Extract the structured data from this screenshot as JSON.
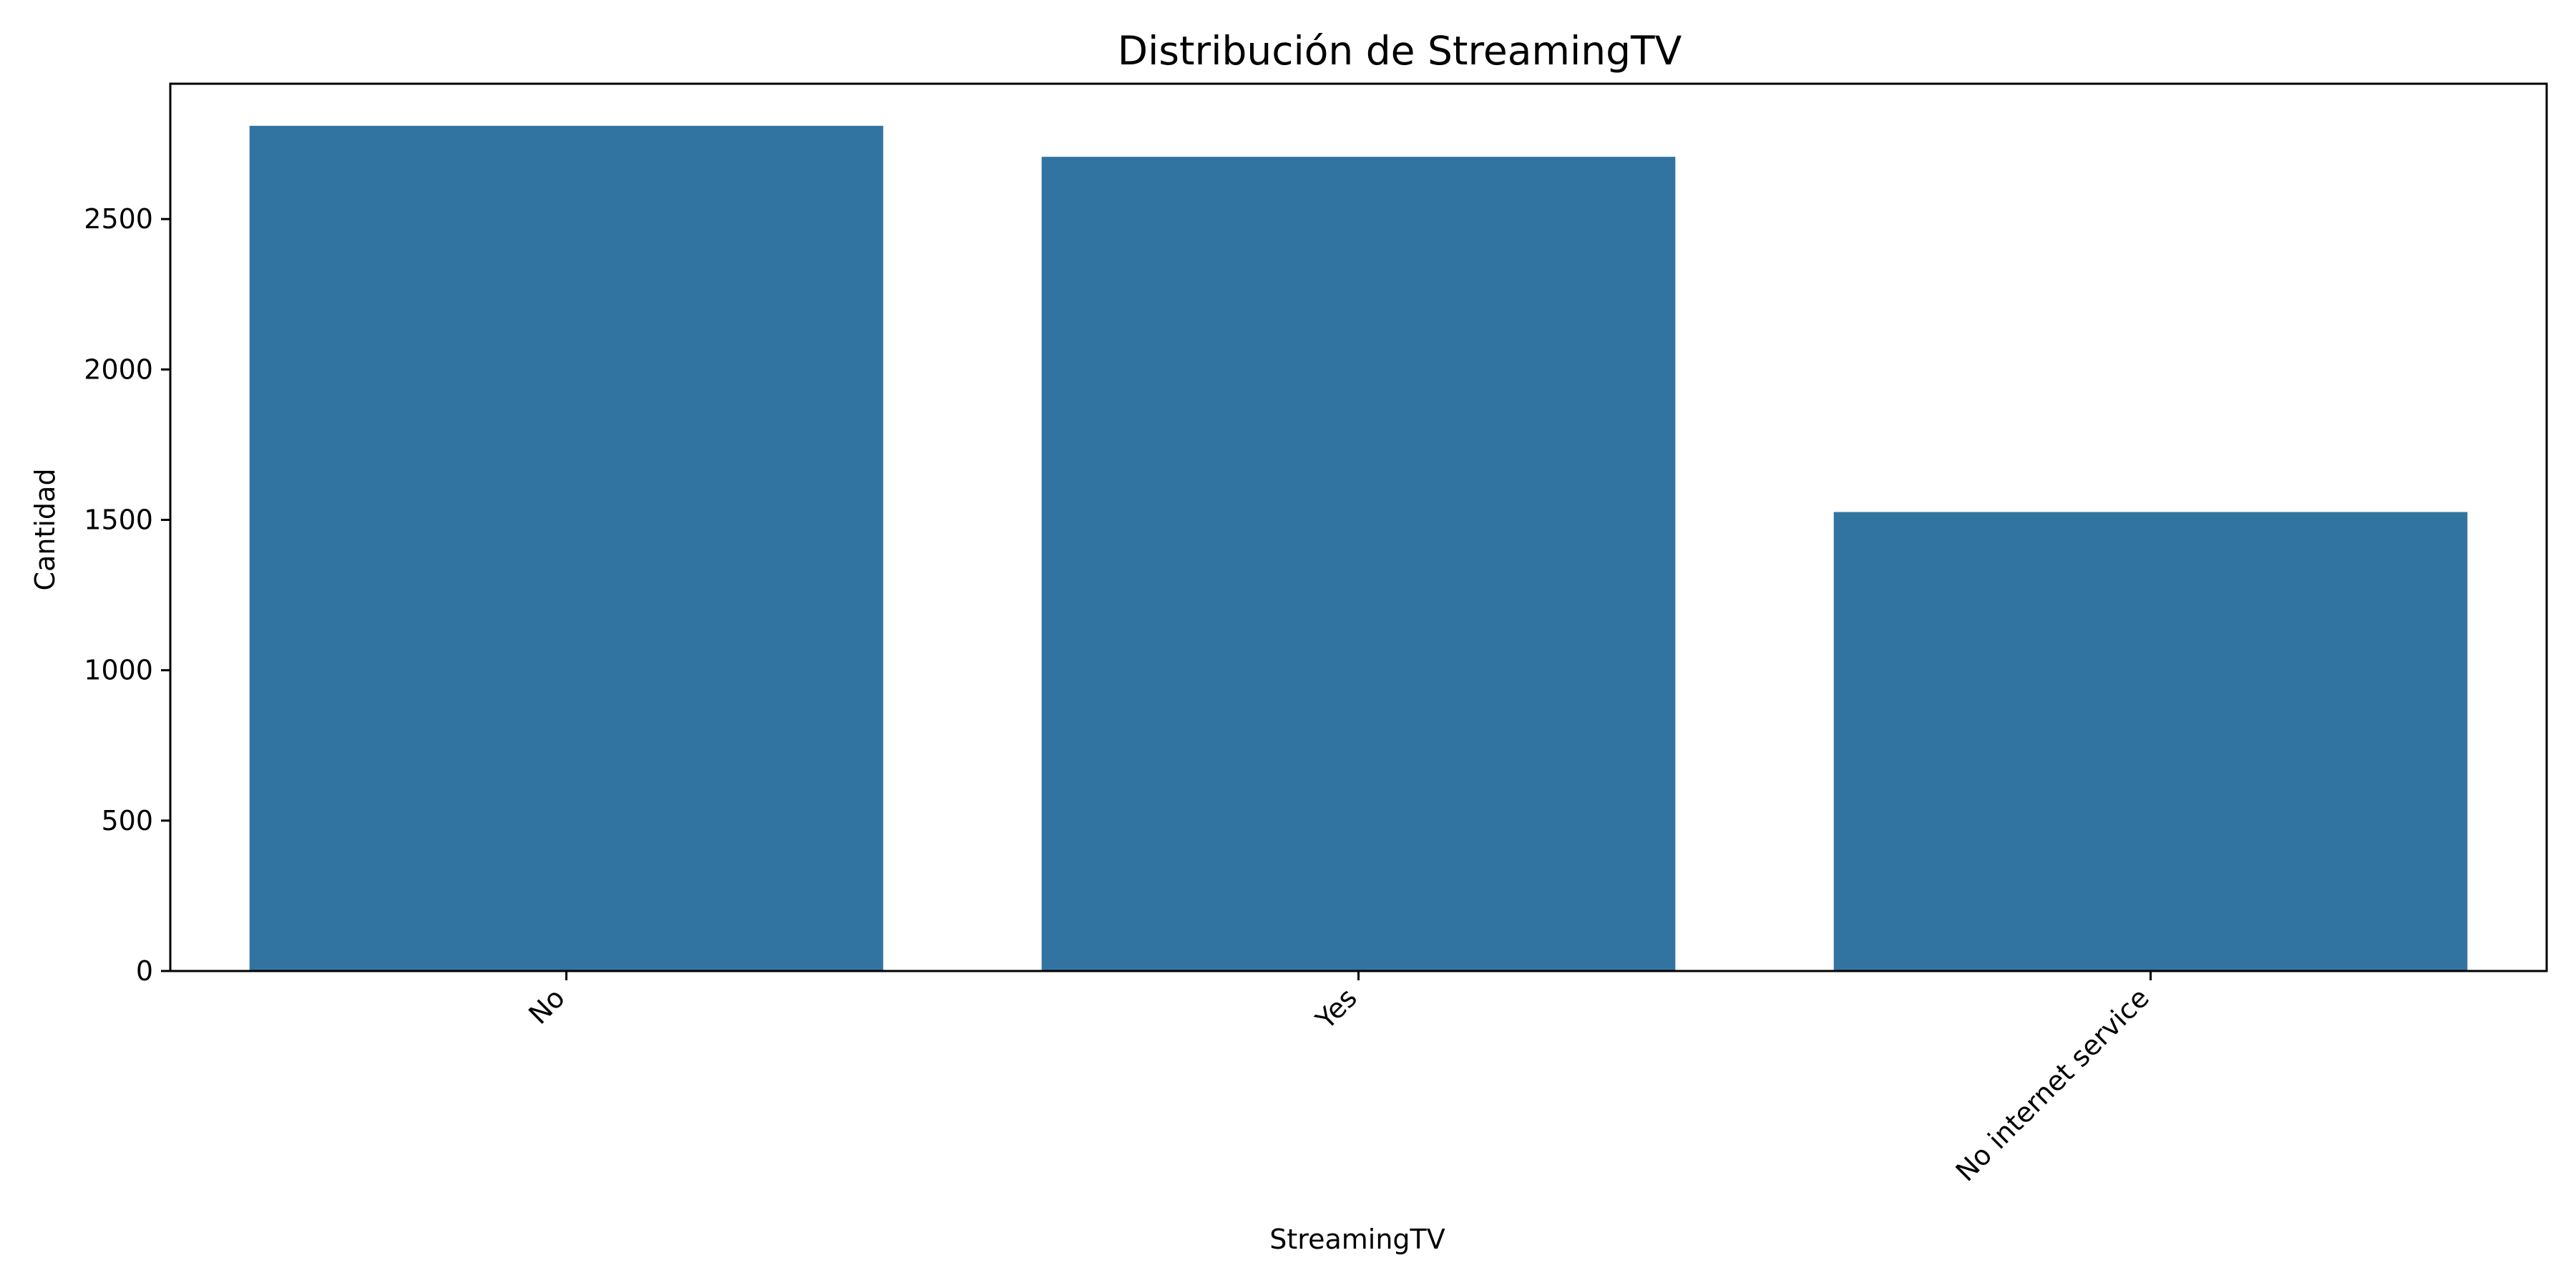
{
  "chart_data": {
    "type": "bar",
    "title": "Distribución de StreamingTV",
    "xlabel": "StreamingTV",
    "ylabel": "Cantidad",
    "categories": [
      "No",
      "Yes",
      "No internet service"
    ],
    "values": [
      2810,
      2707,
      1526
    ],
    "ylim": [
      0,
      2950
    ],
    "yticks": [
      0,
      500,
      1000,
      1500,
      2000,
      2500
    ],
    "bar_color": "#3274a1",
    "grid": false,
    "legend": "none",
    "xtick_rotation_deg": 45
  }
}
